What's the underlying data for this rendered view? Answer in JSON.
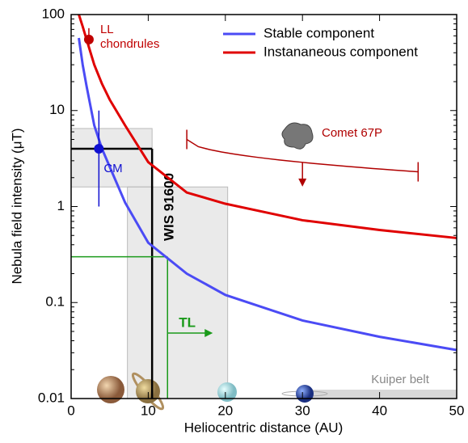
{
  "chart_data": {
    "type": "line",
    "xlabel": "Heliocentric distance (AU)",
    "ylabel": "Nebula field intensity (μT)",
    "x": [
      1,
      1.5,
      2,
      3,
      4,
      5,
      7,
      10,
      15,
      20,
      30,
      40,
      50
    ],
    "series": [
      {
        "name": "Stable component",
        "color": "#4b4bf5",
        "values": [
          57,
          30,
          18,
          7,
          4,
          2.6,
          1.1,
          0.42,
          0.2,
          0.12,
          0.065,
          0.044,
          0.032
        ]
      },
      {
        "name": "Instananeous component",
        "color": "#e00000",
        "values": [
          100,
          75,
          55,
          30,
          19,
          13,
          7,
          2.9,
          1.4,
          1.07,
          0.72,
          0.57,
          0.47
        ]
      }
    ],
    "xlim": [
      0,
      50
    ],
    "xticks": [
      0,
      10,
      20,
      30,
      40,
      50
    ],
    "ylim": [
      0.01,
      100
    ],
    "yticks": [
      0.01,
      0.1,
      1,
      10,
      100
    ],
    "log_y": true,
    "legend": "upper right",
    "shaded": [
      {
        "x": [
          0,
          10.5
        ],
        "y": [
          1.6,
          6.5
        ]
      },
      {
        "x": [
          7.3,
          20.3
        ],
        "y": [
          0.01,
          1.6
        ]
      }
    ],
    "measurements": [
      {
        "label": "LL chondrules",
        "x": 2.3,
        "y": 55,
        "color": "#c00000"
      },
      {
        "label": "CM",
        "x": 3.6,
        "y": 4,
        "yerr": [
          1,
          10
        ],
        "color": "#1010d0"
      }
    ],
    "bounds": [
      {
        "label": "WIS 91600",
        "x": 10.5,
        "y": 4,
        "color": "#000000"
      },
      {
        "label": "TL",
        "x": 12.5,
        "y": 0.3,
        "color": "#1a9a1a"
      }
    ],
    "comet": {
      "label": "Comet 67P",
      "x": [
        15,
        45
      ],
      "y": [
        5,
        2.3
      ],
      "color": "#b00000"
    },
    "kuiper": {
      "label": "Kuiper belt",
      "x": [
        30,
        50
      ]
    }
  }
}
